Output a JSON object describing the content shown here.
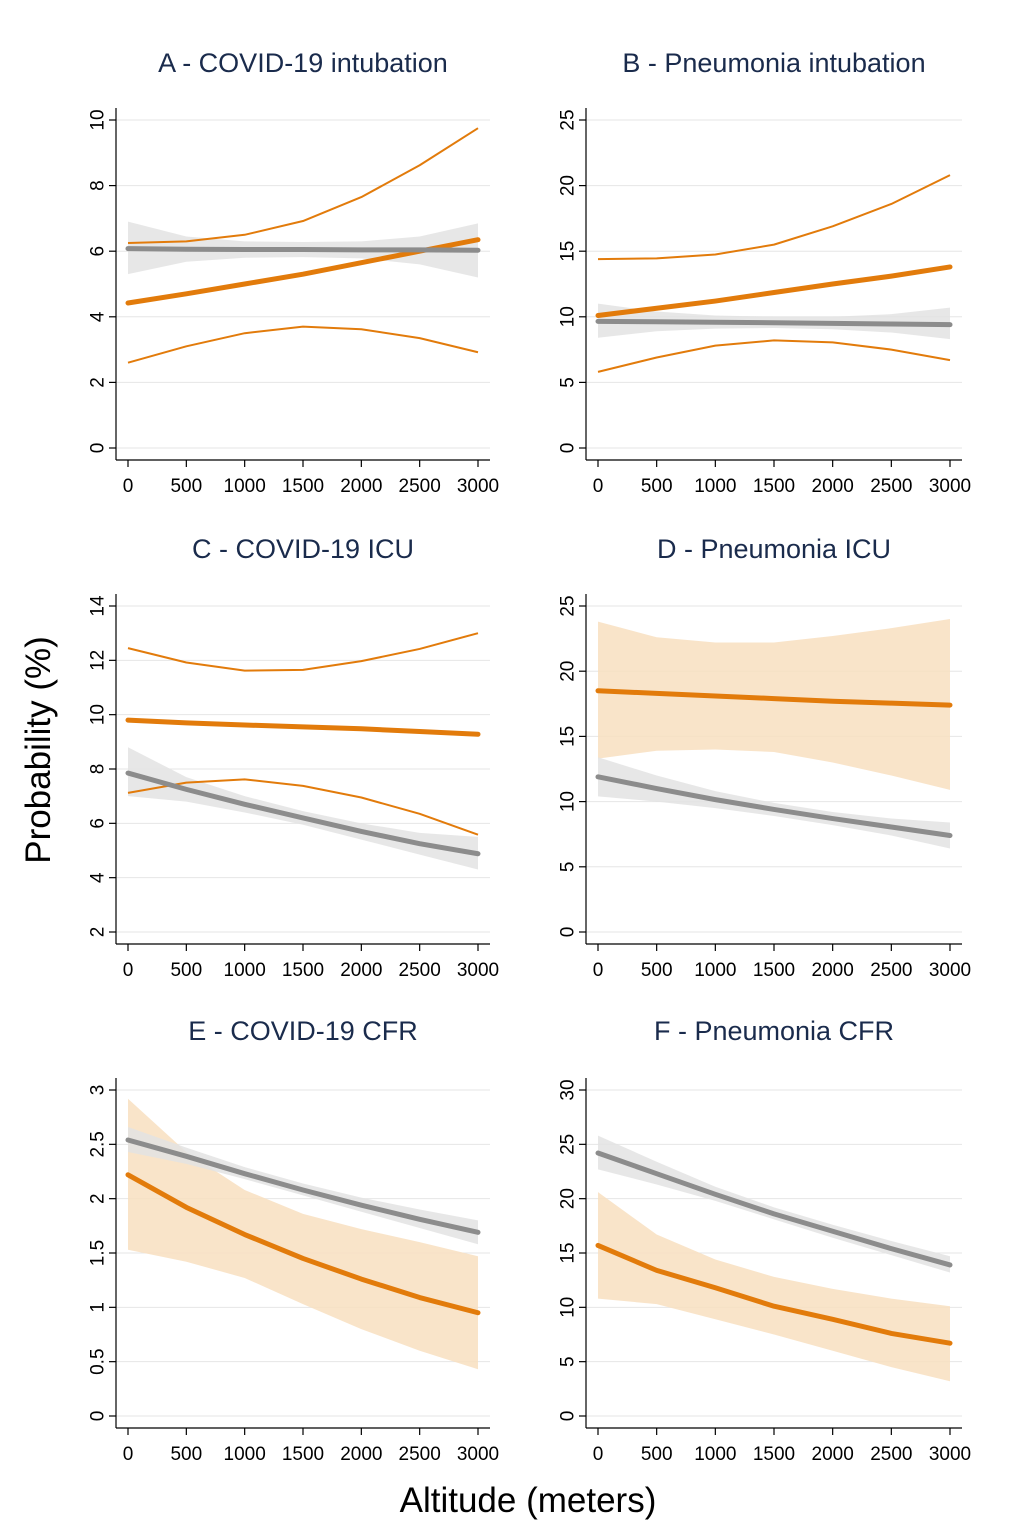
{
  "figure": {
    "ylabel": "Probability (%)",
    "xlabel": "Altitude (meters)"
  },
  "colors": {
    "orange": "#e27b0b",
    "orange_band": "#f8dfbf",
    "gray": "#8c8c8c",
    "gray_band": "#e3e3e3",
    "title": "#1a2b4c",
    "grid": "#e6e6e6"
  },
  "chart_data": [
    {
      "type": "line",
      "title": "A - COVID-19 intubation",
      "xlim": [
        0,
        3000
      ],
      "ylim": [
        0,
        10
      ],
      "xticks": [
        0,
        500,
        1000,
        1500,
        2000,
        2500,
        3000
      ],
      "yticks": [
        0,
        2,
        4,
        6,
        8,
        10
      ],
      "grid": true,
      "series": [
        {
          "color": "orange",
          "style": "ci-lines",
          "x": [
            0,
            500,
            1000,
            1500,
            2000,
            2500,
            3000
          ],
          "y": [
            4.42,
            4.7,
            5.0,
            5.3,
            5.65,
            6.0,
            6.35
          ],
          "lower": [
            2.6,
            3.1,
            3.5,
            3.7,
            3.62,
            3.35,
            2.92
          ],
          "upper": [
            6.25,
            6.3,
            6.5,
            6.92,
            7.65,
            8.62,
            9.75
          ]
        },
        {
          "color": "gray",
          "style": "band",
          "x": [
            0,
            500,
            1000,
            1500,
            2000,
            2500,
            3000
          ],
          "y": [
            6.08,
            6.06,
            6.05,
            6.05,
            6.04,
            6.04,
            6.03
          ],
          "lower": [
            5.3,
            5.68,
            5.8,
            5.82,
            5.78,
            5.6,
            5.2
          ],
          "upper": [
            6.9,
            6.45,
            6.3,
            6.28,
            6.3,
            6.45,
            6.85
          ]
        }
      ]
    },
    {
      "type": "line",
      "title": "B - Pneumonia intubation",
      "xlim": [
        0,
        3000
      ],
      "ylim": [
        0,
        25
      ],
      "xticks": [
        0,
        500,
        1000,
        1500,
        2000,
        2500,
        3000
      ],
      "yticks": [
        0,
        5,
        10,
        15,
        20,
        25
      ],
      "grid": true,
      "series": [
        {
          "color": "orange",
          "style": "ci-lines",
          "x": [
            0,
            500,
            1000,
            1500,
            2000,
            2500,
            3000
          ],
          "y": [
            10.1,
            10.65,
            11.2,
            11.85,
            12.5,
            13.1,
            13.8
          ],
          "lower": [
            5.8,
            6.9,
            7.8,
            8.2,
            8.05,
            7.5,
            6.7
          ],
          "upper": [
            14.4,
            14.45,
            14.75,
            15.5,
            16.9,
            18.6,
            20.8
          ]
        },
        {
          "color": "gray",
          "style": "band",
          "x": [
            0,
            500,
            1000,
            1500,
            2000,
            2500,
            3000
          ],
          "y": [
            9.65,
            9.62,
            9.58,
            9.55,
            9.5,
            9.45,
            9.4
          ],
          "lower": [
            8.4,
            8.9,
            9.1,
            9.15,
            9.05,
            8.8,
            8.3
          ],
          "upper": [
            11.0,
            10.4,
            10.1,
            10.0,
            10.0,
            10.2,
            10.7
          ]
        }
      ]
    },
    {
      "type": "line",
      "title": "C - COVID-19 ICU",
      "xlim": [
        0,
        3000
      ],
      "ylim": [
        2,
        14
      ],
      "xticks": [
        0,
        500,
        1000,
        1500,
        2000,
        2500,
        3000
      ],
      "yticks": [
        2,
        4,
        6,
        8,
        10,
        12,
        14
      ],
      "grid": true,
      "series": [
        {
          "color": "orange",
          "style": "ci-lines",
          "x": [
            0,
            500,
            1000,
            1500,
            2000,
            2500,
            3000
          ],
          "y": [
            9.8,
            9.7,
            9.62,
            9.55,
            9.48,
            9.38,
            9.28
          ],
          "lower": [
            7.12,
            7.5,
            7.62,
            7.38,
            6.95,
            6.35,
            5.58
          ],
          "upper": [
            12.45,
            11.92,
            11.62,
            11.65,
            11.97,
            12.42,
            13.0
          ]
        },
        {
          "color": "gray",
          "style": "band",
          "x": [
            0,
            500,
            1000,
            1500,
            2000,
            2500,
            3000
          ],
          "y": [
            7.85,
            7.25,
            6.7,
            6.2,
            5.7,
            5.25,
            4.88
          ],
          "lower": [
            7.0,
            6.8,
            6.4,
            5.95,
            5.4,
            4.85,
            4.3
          ],
          "upper": [
            8.8,
            7.7,
            7.0,
            6.45,
            6.0,
            5.65,
            5.5
          ]
        }
      ]
    },
    {
      "type": "line",
      "title": "D - Pneumonia ICU",
      "xlim": [
        0,
        3000
      ],
      "ylim": [
        0,
        25
      ],
      "xticks": [
        0,
        500,
        1000,
        1500,
        2000,
        2500,
        3000
      ],
      "yticks": [
        0,
        5,
        10,
        15,
        20,
        25
      ],
      "grid": true,
      "series": [
        {
          "color": "orange",
          "style": "band",
          "x": [
            0,
            500,
            1000,
            1500,
            2000,
            2500,
            3000
          ],
          "y": [
            18.5,
            18.3,
            18.1,
            17.9,
            17.7,
            17.55,
            17.4
          ],
          "lower": [
            13.3,
            13.9,
            14.0,
            13.8,
            13.0,
            12.0,
            10.9
          ],
          "upper": [
            23.8,
            22.6,
            22.2,
            22.2,
            22.7,
            23.3,
            24.0
          ]
        },
        {
          "color": "gray",
          "style": "band",
          "x": [
            0,
            500,
            1000,
            1500,
            2000,
            2500,
            3000
          ],
          "y": [
            11.9,
            11.0,
            10.15,
            9.4,
            8.7,
            8.05,
            7.4
          ],
          "lower": [
            10.4,
            10.0,
            9.5,
            8.9,
            8.2,
            7.4,
            6.4
          ],
          "upper": [
            13.4,
            12.0,
            10.8,
            9.9,
            9.2,
            8.7,
            8.4
          ]
        }
      ]
    },
    {
      "type": "line",
      "title": "E - COVID-19 CFR",
      "xlim": [
        0,
        3000
      ],
      "ylim": [
        0,
        3
      ],
      "xticks": [
        0,
        500,
        1000,
        1500,
        2000,
        2500,
        3000
      ],
      "yticks": [
        0,
        0.5,
        1,
        1.5,
        2,
        2.5,
        3
      ],
      "ytick_labels": [
        "0",
        "0.5",
        "1",
        "1.5",
        "2",
        "2.5",
        "3"
      ],
      "grid": true,
      "series": [
        {
          "color": "orange",
          "style": "band",
          "x": [
            0,
            500,
            1000,
            1500,
            2000,
            2500,
            3000
          ],
          "y": [
            2.22,
            1.92,
            1.67,
            1.45,
            1.26,
            1.09,
            0.95
          ],
          "lower": [
            1.53,
            1.42,
            1.27,
            1.03,
            0.8,
            0.6,
            0.43
          ],
          "upper": [
            2.92,
            2.43,
            2.08,
            1.86,
            1.72,
            1.6,
            1.47
          ]
        },
        {
          "color": "gray",
          "style": "band",
          "x": [
            0,
            500,
            1000,
            1500,
            2000,
            2500,
            3000
          ],
          "y": [
            2.54,
            2.39,
            2.23,
            2.08,
            1.94,
            1.81,
            1.69
          ],
          "lower": [
            2.43,
            2.32,
            2.18,
            2.03,
            1.88,
            1.73,
            1.58
          ],
          "upper": [
            2.66,
            2.47,
            2.29,
            2.14,
            2.01,
            1.9,
            1.8
          ]
        }
      ]
    },
    {
      "type": "line",
      "title": "F - Pneumonia CFR",
      "xlim": [
        0,
        3000
      ],
      "ylim": [
        0,
        30
      ],
      "xticks": [
        0,
        500,
        1000,
        1500,
        2000,
        2500,
        3000
      ],
      "yticks": [
        0,
        5,
        10,
        15,
        20,
        25,
        30
      ],
      "grid": true,
      "series": [
        {
          "color": "orange",
          "style": "band",
          "x": [
            0,
            500,
            1000,
            1500,
            2000,
            2500,
            3000
          ],
          "y": [
            15.7,
            13.4,
            11.8,
            10.1,
            8.9,
            7.6,
            6.7
          ],
          "lower": [
            10.8,
            10.3,
            8.9,
            7.5,
            6.0,
            4.5,
            3.2
          ],
          "upper": [
            20.6,
            16.7,
            14.4,
            12.8,
            11.7,
            10.8,
            10.1
          ]
        },
        {
          "color": "gray",
          "style": "band",
          "x": [
            0,
            500,
            1000,
            1500,
            2000,
            2500,
            3000
          ],
          "y": [
            24.2,
            22.3,
            20.4,
            18.6,
            17.0,
            15.4,
            13.9
          ],
          "lower": [
            22.7,
            21.3,
            19.8,
            18.1,
            16.4,
            14.8,
            13.2
          ],
          "upper": [
            25.8,
            23.4,
            21.1,
            19.2,
            17.6,
            16.1,
            14.7
          ]
        }
      ]
    }
  ]
}
